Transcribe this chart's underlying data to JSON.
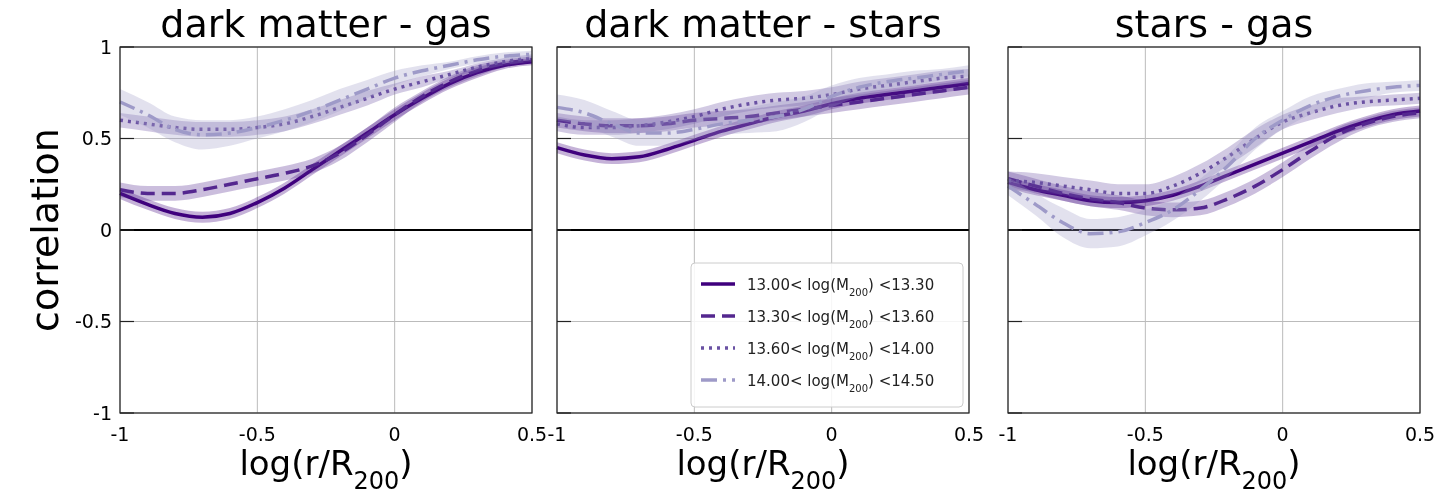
{
  "chart_data": [
    {
      "type": "line",
      "title": "dark matter - gas",
      "xlabel": "log(r/R$_{200}$)",
      "ylabel": "correlation",
      "x": [
        -1,
        -0.9,
        -0.8,
        -0.7,
        -0.6,
        -0.5,
        -0.4,
        -0.3,
        -0.2,
        -0.1,
        0,
        0.1,
        0.2,
        0.3,
        0.4,
        0.5
      ],
      "xlim": [
        -1,
        0.5
      ],
      "xticks": [
        -1,
        -0.5,
        0,
        0.5
      ],
      "ylim": [
        -1,
        1
      ],
      "yticks": [
        -1,
        -0.5,
        0,
        0.5,
        1
      ],
      "grid": true,
      "legend": false,
      "ref_lines": [
        {
          "axis": "y",
          "value": 0,
          "color": "#000000"
        }
      ],
      "series": [
        {
          "color": "#3f007d",
          "line_style": "solid",
          "values": [
            0.2,
            0.14,
            0.09,
            0.07,
            0.09,
            0.15,
            0.23,
            0.33,
            0.43,
            0.53,
            0.63,
            0.72,
            0.8,
            0.86,
            0.9,
            0.92
          ],
          "lower": [
            0.17,
            0.11,
            0.06,
            0.04,
            0.06,
            0.12,
            0.2,
            0.3,
            0.4,
            0.5,
            0.6,
            0.69,
            0.77,
            0.83,
            0.88,
            0.9
          ],
          "upper": [
            0.23,
            0.17,
            0.12,
            0.1,
            0.12,
            0.18,
            0.26,
            0.36,
            0.46,
            0.56,
            0.66,
            0.75,
            0.83,
            0.89,
            0.92,
            0.94
          ]
        },
        {
          "color": "#54278f",
          "line_style": "dashed",
          "values": [
            0.22,
            0.2,
            0.2,
            0.22,
            0.25,
            0.28,
            0.31,
            0.35,
            0.42,
            0.52,
            0.63,
            0.73,
            0.81,
            0.87,
            0.91,
            0.93
          ],
          "lower": [
            0.18,
            0.16,
            0.16,
            0.18,
            0.21,
            0.24,
            0.27,
            0.31,
            0.38,
            0.48,
            0.59,
            0.7,
            0.78,
            0.84,
            0.89,
            0.91
          ],
          "upper": [
            0.26,
            0.24,
            0.24,
            0.26,
            0.29,
            0.32,
            0.35,
            0.39,
            0.46,
            0.56,
            0.67,
            0.76,
            0.84,
            0.9,
            0.93,
            0.95
          ]
        },
        {
          "color": "#6a51a3",
          "line_style": "dotted",
          "values": [
            0.6,
            0.58,
            0.56,
            0.55,
            0.55,
            0.56,
            0.58,
            0.62,
            0.67,
            0.72,
            0.77,
            0.81,
            0.85,
            0.89,
            0.92,
            0.94
          ],
          "lower": [
            0.56,
            0.54,
            0.52,
            0.51,
            0.51,
            0.52,
            0.54,
            0.58,
            0.63,
            0.68,
            0.74,
            0.78,
            0.83,
            0.87,
            0.9,
            0.92
          ],
          "upper": [
            0.64,
            0.62,
            0.6,
            0.59,
            0.59,
            0.6,
            0.62,
            0.66,
            0.71,
            0.76,
            0.8,
            0.84,
            0.87,
            0.91,
            0.94,
            0.96
          ]
        },
        {
          "color": "#9e9ac8",
          "line_style": "dashdot",
          "values": [
            0.7,
            0.63,
            0.55,
            0.52,
            0.53,
            0.56,
            0.6,
            0.65,
            0.71,
            0.77,
            0.83,
            0.87,
            0.9,
            0.93,
            0.95,
            0.96
          ],
          "lower": [
            0.63,
            0.56,
            0.48,
            0.44,
            0.46,
            0.5,
            0.54,
            0.59,
            0.65,
            0.72,
            0.79,
            0.84,
            0.88,
            0.91,
            0.93,
            0.94
          ],
          "upper": [
            0.77,
            0.7,
            0.62,
            0.6,
            0.6,
            0.62,
            0.66,
            0.71,
            0.77,
            0.82,
            0.87,
            0.9,
            0.92,
            0.95,
            0.97,
            0.98
          ]
        }
      ]
    },
    {
      "type": "line",
      "title": "dark matter - stars",
      "xlabel": "log(r/R$_{200}$)",
      "x": [
        -1,
        -0.9,
        -0.8,
        -0.7,
        -0.6,
        -0.5,
        -0.4,
        -0.3,
        -0.2,
        -0.1,
        0,
        0.1,
        0.2,
        0.3,
        0.4,
        0.5
      ],
      "xlim": [
        -1,
        0.5
      ],
      "xticks": [
        -1,
        -0.5,
        0,
        0.5
      ],
      "ylim": [
        -1,
        1
      ],
      "yticks": [
        -1,
        -0.5,
        0,
        0.5,
        1
      ],
      "grid": true,
      "tick_labels": "x",
      "legend": "bottom right",
      "ref_lines": [
        {
          "axis": "y",
          "value": 0,
          "color": "#000000"
        }
      ],
      "series": [
        {
          "name": "13.00< log(M$_{200}$) <13.30",
          "color": "#3f007d",
          "line_style": "solid",
          "values": [
            0.45,
            0.41,
            0.39,
            0.4,
            0.44,
            0.49,
            0.54,
            0.58,
            0.62,
            0.65,
            0.69,
            0.72,
            0.74,
            0.76,
            0.78,
            0.8
          ],
          "lower": [
            0.42,
            0.38,
            0.36,
            0.37,
            0.41,
            0.46,
            0.51,
            0.55,
            0.59,
            0.62,
            0.66,
            0.69,
            0.71,
            0.73,
            0.75,
            0.77
          ],
          "upper": [
            0.48,
            0.44,
            0.42,
            0.43,
            0.47,
            0.52,
            0.57,
            0.61,
            0.65,
            0.68,
            0.72,
            0.75,
            0.77,
            0.79,
            0.81,
            0.83
          ]
        },
        {
          "name": "13.30< log(M$_{200}$) <13.60",
          "color": "#54278f",
          "line_style": "dashed",
          "values": [
            0.6,
            0.58,
            0.57,
            0.57,
            0.58,
            0.6,
            0.61,
            0.62,
            0.64,
            0.66,
            0.68,
            0.7,
            0.72,
            0.74,
            0.76,
            0.78
          ],
          "lower": [
            0.56,
            0.54,
            0.53,
            0.53,
            0.54,
            0.56,
            0.57,
            0.58,
            0.6,
            0.62,
            0.64,
            0.66,
            0.68,
            0.7,
            0.72,
            0.74
          ],
          "upper": [
            0.64,
            0.62,
            0.61,
            0.61,
            0.62,
            0.64,
            0.65,
            0.66,
            0.68,
            0.7,
            0.72,
            0.74,
            0.76,
            0.78,
            0.8,
            0.82
          ]
        },
        {
          "name": "13.60< log(M$_{200}$) <14.00",
          "color": "#6a51a3",
          "line_style": "dotted",
          "values": [
            0.58,
            0.56,
            0.56,
            0.57,
            0.59,
            0.62,
            0.66,
            0.69,
            0.71,
            0.72,
            0.74,
            0.77,
            0.79,
            0.81,
            0.83,
            0.84
          ],
          "lower": [
            0.54,
            0.52,
            0.52,
            0.53,
            0.55,
            0.58,
            0.62,
            0.65,
            0.67,
            0.68,
            0.7,
            0.73,
            0.75,
            0.77,
            0.79,
            0.8
          ],
          "upper": [
            0.62,
            0.6,
            0.6,
            0.61,
            0.63,
            0.66,
            0.7,
            0.73,
            0.75,
            0.76,
            0.78,
            0.81,
            0.83,
            0.85,
            0.87,
            0.88
          ]
        },
        {
          "name": "14.00< log(M$_{200}$) <14.50",
          "color": "#9e9ac8",
          "line_style": "dashdot",
          "values": [
            0.67,
            0.64,
            0.58,
            0.53,
            0.53,
            0.55,
            0.58,
            0.6,
            0.62,
            0.66,
            0.73,
            0.78,
            0.81,
            0.83,
            0.85,
            0.87
          ],
          "lower": [
            0.6,
            0.57,
            0.51,
            0.46,
            0.46,
            0.49,
            0.52,
            0.53,
            0.54,
            0.59,
            0.67,
            0.73,
            0.77,
            0.79,
            0.82,
            0.84
          ],
          "upper": [
            0.74,
            0.71,
            0.65,
            0.6,
            0.6,
            0.61,
            0.64,
            0.67,
            0.7,
            0.73,
            0.79,
            0.83,
            0.85,
            0.87,
            0.88,
            0.9
          ]
        }
      ]
    },
    {
      "type": "line",
      "title": "stars - gas",
      "xlabel": "log(r/R$_{200}$)",
      "x": [
        -1,
        -0.9,
        -0.8,
        -0.7,
        -0.6,
        -0.5,
        -0.4,
        -0.3,
        -0.2,
        -0.1,
        0,
        0.1,
        0.2,
        0.3,
        0.4,
        0.5
      ],
      "xlim": [
        -1,
        0.5
      ],
      "xticks": [
        -1,
        -0.5,
        0,
        0.5
      ],
      "ylim": [
        -1,
        1
      ],
      "yticks": [
        -1,
        -0.5,
        0,
        0.5,
        1
      ],
      "grid": true,
      "tick_labels": "x",
      "legend": false,
      "ref_lines": [
        {
          "axis": "y",
          "value": 0,
          "color": "#000000"
        }
      ],
      "series": [
        {
          "color": "#3f007d",
          "line_style": "solid",
          "values": [
            0.26,
            0.22,
            0.19,
            0.16,
            0.15,
            0.16,
            0.19,
            0.24,
            0.3,
            0.36,
            0.42,
            0.48,
            0.54,
            0.59,
            0.63,
            0.65
          ],
          "lower": [
            0.23,
            0.19,
            0.16,
            0.13,
            0.12,
            0.13,
            0.16,
            0.21,
            0.27,
            0.33,
            0.39,
            0.45,
            0.51,
            0.56,
            0.6,
            0.62
          ],
          "upper": [
            0.29,
            0.25,
            0.22,
            0.19,
            0.18,
            0.19,
            0.22,
            0.27,
            0.33,
            0.39,
            0.45,
            0.51,
            0.57,
            0.62,
            0.66,
            0.68
          ]
        },
        {
          "color": "#54278f",
          "line_style": "dashed",
          "values": [
            0.28,
            0.24,
            0.2,
            0.17,
            0.15,
            0.12,
            0.11,
            0.12,
            0.17,
            0.24,
            0.33,
            0.43,
            0.52,
            0.58,
            0.62,
            0.64
          ],
          "lower": [
            0.24,
            0.2,
            0.16,
            0.13,
            0.11,
            0.08,
            0.07,
            0.08,
            0.13,
            0.2,
            0.29,
            0.39,
            0.48,
            0.55,
            0.59,
            0.61
          ],
          "upper": [
            0.32,
            0.28,
            0.24,
            0.21,
            0.19,
            0.16,
            0.15,
            0.16,
            0.21,
            0.28,
            0.37,
            0.47,
            0.56,
            0.61,
            0.65,
            0.67
          ]
        },
        {
          "color": "#6a51a3",
          "line_style": "dotted",
          "values": [
            0.27,
            0.26,
            0.24,
            0.22,
            0.2,
            0.2,
            0.24,
            0.31,
            0.4,
            0.5,
            0.59,
            0.64,
            0.68,
            0.7,
            0.71,
            0.72
          ],
          "lower": [
            0.22,
            0.21,
            0.19,
            0.17,
            0.15,
            0.15,
            0.19,
            0.26,
            0.35,
            0.45,
            0.55,
            0.6,
            0.64,
            0.67,
            0.68,
            0.69
          ],
          "upper": [
            0.32,
            0.31,
            0.29,
            0.27,
            0.25,
            0.25,
            0.29,
            0.36,
            0.45,
            0.55,
            0.63,
            0.68,
            0.72,
            0.73,
            0.74,
            0.75
          ]
        },
        {
          "color": "#9e9ac8",
          "line_style": "dashdot",
          "values": [
            0.24,
            0.14,
            0.04,
            -0.02,
            -0.01,
            0.04,
            0.11,
            0.22,
            0.35,
            0.5,
            0.6,
            0.68,
            0.73,
            0.76,
            0.78,
            0.79
          ],
          "lower": [
            0.19,
            0.08,
            -0.04,
            -0.1,
            -0.09,
            -0.03,
            0.05,
            0.16,
            0.29,
            0.44,
            0.55,
            0.63,
            0.69,
            0.72,
            0.75,
            0.76
          ],
          "upper": [
            0.29,
            0.2,
            0.12,
            0.06,
            0.07,
            0.11,
            0.17,
            0.28,
            0.41,
            0.56,
            0.65,
            0.73,
            0.77,
            0.8,
            0.81,
            0.82
          ]
        }
      ]
    }
  ]
}
